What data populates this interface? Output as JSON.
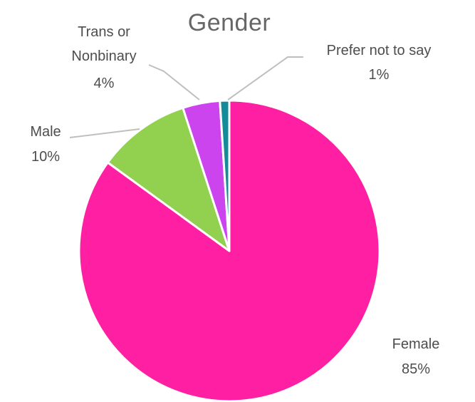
{
  "chart_data": {
    "type": "pie",
    "title": "Gender",
    "slices": [
      {
        "label": "Female",
        "value": 85,
        "value_label": "85%",
        "color": "#ff1fa3"
      },
      {
        "label": "Male",
        "value": 10,
        "value_label": "10%",
        "color": "#92d050"
      },
      {
        "label": "Trans or Nonbinary",
        "label_lines": [
          "Trans or",
          "Nonbinary"
        ],
        "value": 4,
        "value_label": "4%",
        "color": "#cc44ee"
      },
      {
        "label": "Prefer not to say",
        "value": 1,
        "value_label": "1%",
        "color": "#138b98"
      }
    ],
    "start_angle": "12 o'clock",
    "direction": "clockwise",
    "legend": "none",
    "data_labels": "outside with leader lines"
  }
}
